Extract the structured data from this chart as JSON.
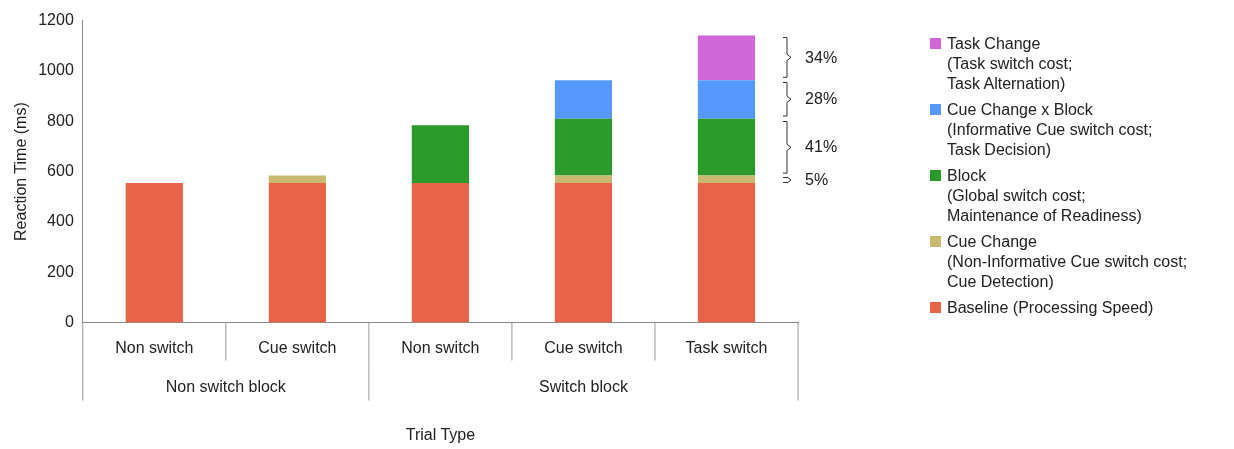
{
  "chart_data": {
    "type": "bar",
    "stacked": true,
    "xlabel": "Trial Type",
    "ylabel": "Reaction Time (ms)",
    "categories": [
      "Non switch",
      "Cue switch",
      "Non switch",
      "Cue switch",
      "Task switch"
    ],
    "series": [
      {
        "name": "Baseline (Processing Speed)",
        "color": "#e8634a",
        "values": [
          555,
          555,
          555,
          555,
          555
        ]
      },
      {
        "name": "Cue Change\n(Non-Informative Cue switch cost;\nCue Detection)",
        "color": "#c8b870",
        "values": [
          null,
          30,
          null,
          30,
          30
        ]
      },
      {
        "name": "Block\n(Global switch cost;\nMaintenance of Readiness)",
        "color": "#2a9a2a",
        "values": [
          null,
          null,
          229,
          225,
          225
        ]
      },
      {
        "name": "Cue Change x Block\n(Informative Cue switch cost;\nTask Decision)",
        "color": "#5599ff",
        "values": [
          null,
          null,
          null,
          153,
          153
        ]
      },
      {
        "name": "Task Change\n(Task switch cost;\nTask Alternation)",
        "color": "#d066d8",
        "values": [
          null,
          null,
          null,
          null,
          178
        ]
      }
    ],
    "ylim": [
      0,
      1200
    ],
    "yticks": [
      0,
      200,
      400,
      600,
      800,
      1000,
      1200
    ],
    "grid": false,
    "legend": "right",
    "annotations": [
      "34%",
      "28%",
      "41%",
      "5%",
      "Non switch block",
      "Switch block"
    ]
  }
}
